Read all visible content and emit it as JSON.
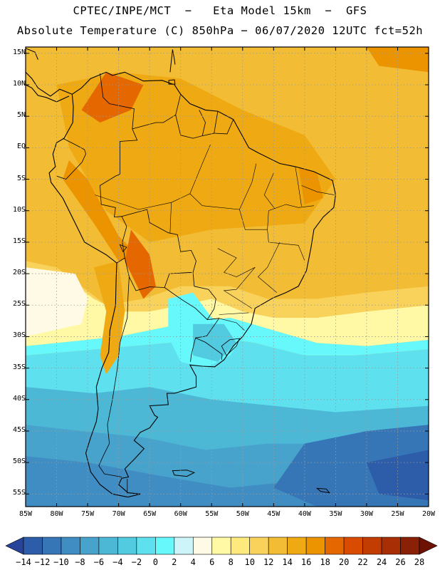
{
  "header": {
    "title_line1": "CPTEC/INPE/MCT  −   Eta Model 15km  −  GFS",
    "title_line2": "Absolute Temperature (C) 850hPa − 06/07/2020 12UTC fct=52h"
  },
  "map": {
    "lat_labels": [
      "15N",
      "10N",
      "5N",
      "EQ",
      "5S",
      "10S",
      "15S",
      "20S",
      "25S",
      "30S",
      "35S",
      "40S",
      "45S",
      "50S",
      "55S"
    ],
    "lat_values": [
      15,
      10,
      5,
      0,
      -5,
      -10,
      -15,
      -20,
      -25,
      -30,
      -35,
      -40,
      -45,
      -50,
      -55
    ],
    "lon_labels": [
      "85W",
      "80W",
      "75W",
      "70W",
      "65W",
      "60W",
      "55W",
      "50W",
      "45W",
      "40W",
      "35W",
      "30W",
      "25W",
      "20W"
    ],
    "lon_values": [
      -85,
      -80,
      -75,
      -70,
      -65,
      -60,
      -55,
      -50,
      -45,
      -40,
      -35,
      -30,
      -25,
      -20
    ],
    "extent": {
      "lon_min": -85,
      "lon_max": -20,
      "lat_min": -57,
      "lat_max": 16
    }
  },
  "colorbar": {
    "labels": [
      "−14",
      "−12",
      "−10",
      "−8",
      "−6",
      "−4",
      "−2",
      "0",
      "2",
      "4",
      "6",
      "8",
      "10",
      "12",
      "14",
      "16",
      "18",
      "20",
      "22",
      "24",
      "26",
      "28"
    ],
    "values": [
      -14,
      -12,
      -10,
      -8,
      -6,
      -4,
      -2,
      0,
      2,
      4,
      6,
      8,
      10,
      12,
      14,
      16,
      18,
      20,
      22,
      24,
      26,
      28
    ],
    "colors": [
      "#27439a",
      "#2d5da9",
      "#3776b6",
      "#3f8dc3",
      "#48a3cc",
      "#4db8d6",
      "#52cbe0",
      "#5fe0ee",
      "#66f8fb",
      "#cdf4f9",
      "#fffae6",
      "#fff9a6",
      "#fde97c",
      "#f9d25b",
      "#f2bd34",
      "#efaa13",
      "#eb9400",
      "#e56700",
      "#d94c00",
      "#c23d02",
      "#a72e05",
      "#8a2005",
      "#6c1103"
    ]
  }
}
